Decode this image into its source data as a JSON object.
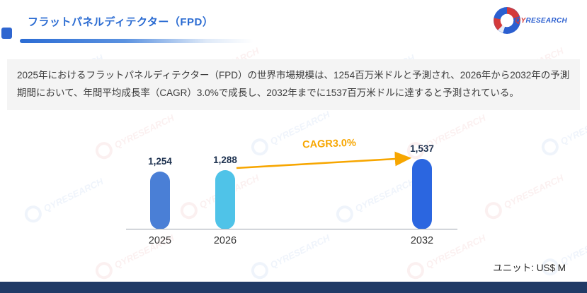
{
  "header": {
    "title": "フラットパネルディテクター（FPD）",
    "logo": {
      "red": "QY",
      "blue": "RESEARCH"
    }
  },
  "brand": {
    "watermark": "QYRESEARCH"
  },
  "summary": {
    "text": "2025年におけるフラットパネルディテクター（FPD）の世界市場規模は、1254百万米ドルと予測され、2026年から2032年の予測期間において、年間平均成長率（CAGR）3.0%で成長し、2032年までに1537百万米ドルに達すると予測されている。"
  },
  "chart_data": {
    "type": "bar",
    "title": "",
    "categories": [
      "2025",
      "2026",
      "2032"
    ],
    "values": [
      1254,
      1288,
      1537
    ],
    "value_labels": [
      "1,254",
      "1,288",
      "1,537"
    ],
    "bar_colors": [
      "#4a7fd6",
      "#4fc3e8",
      "#2b66e0"
    ],
    "annotation": {
      "label": "CAGR3.0%",
      "from_category": "2026",
      "to_category": "2032",
      "color": "#f7a600"
    },
    "unit_label": "ユニット: US$ M",
    "xlabel": "",
    "ylabel": "",
    "ylim": [
      0,
      1700
    ],
    "grid": false,
    "legend": false
  }
}
